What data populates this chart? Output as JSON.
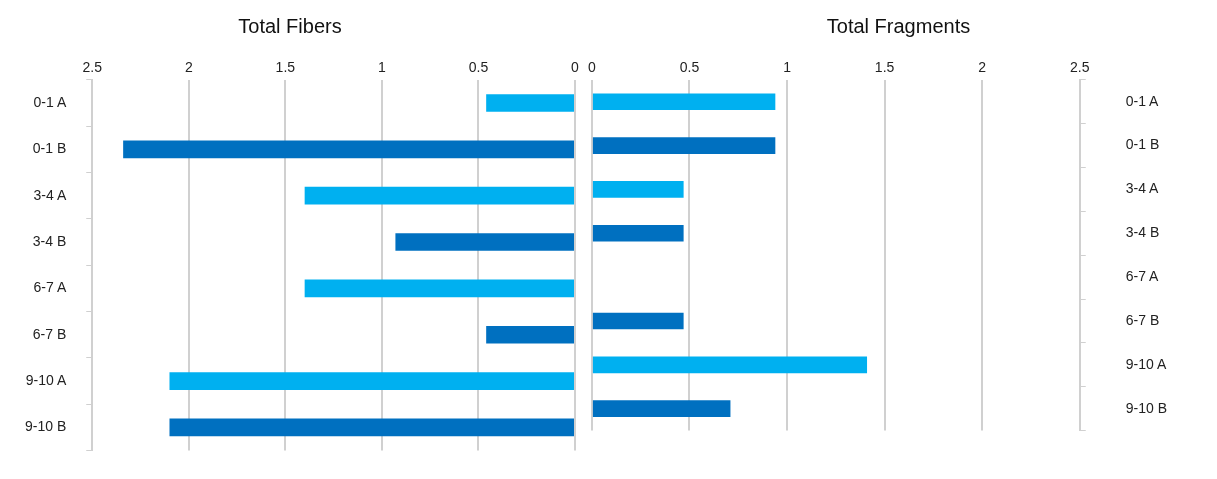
{
  "chart_data": [
    {
      "type": "bar",
      "orientation": "horizontal",
      "title": "Total Fibers",
      "categories": [
        "0-1 A",
        "0-1 B",
        "3-4 A",
        "3-4 B",
        "6-7 A",
        "6-7 B",
        "9-10 A",
        "9-10 B"
      ],
      "values": [
        0.46,
        2.34,
        1.4,
        0.93,
        1.4,
        0.46,
        2.1,
        2.1
      ],
      "colors": [
        "#00b0f0",
        "#0070c0",
        "#00b0f0",
        "#0070c0",
        "#00b0f0",
        "#0070c0",
        "#00b0f0",
        "#0070c0"
      ],
      "xlim": [
        2.5,
        0
      ],
      "xticks": [
        2.5,
        2,
        1.5,
        1,
        0.5,
        0
      ],
      "grid": "x",
      "legend": false
    },
    {
      "type": "bar",
      "orientation": "horizontal",
      "title": "Total Fragments",
      "categories": [
        "0-1 A",
        "0-1 B",
        "3-4 A",
        "3-4 B",
        "6-7 A",
        "6-7 B",
        "9-10 A",
        "9-10 B"
      ],
      "values": [
        0.94,
        0.94,
        0.47,
        0.47,
        0,
        0.47,
        1.41,
        0.71
      ],
      "colors": [
        "#00b0f0",
        "#0070c0",
        "#00b0f0",
        "#0070c0",
        "#00b0f0",
        "#0070c0",
        "#00b0f0",
        "#0070c0"
      ],
      "xlim": [
        0,
        2.5
      ],
      "xticks": [
        0,
        0.5,
        1,
        1.5,
        2,
        2.5
      ],
      "grid": "x",
      "legend": false
    }
  ]
}
